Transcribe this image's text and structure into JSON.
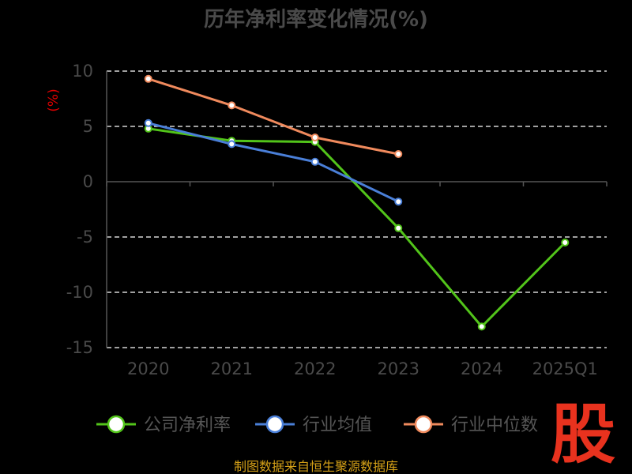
{
  "chart_data": {
    "type": "line",
    "title": "历年净利率变化情况(%)",
    "ylabel": "(%)",
    "xlabel": "",
    "categories": [
      "2020",
      "2021",
      "2022",
      "2023",
      "2024",
      "2025Q1"
    ],
    "ylim": [
      -15,
      10
    ],
    "yticks": [
      10,
      5,
      0,
      -5,
      -10,
      -15
    ],
    "grid": true,
    "legend_position": "bottom",
    "series": [
      {
        "name": "公司净利率",
        "color": "#52c41a",
        "values": [
          4.8,
          3.7,
          3.6,
          -4.2,
          -13.1,
          -5.5
        ]
      },
      {
        "name": "行业均值",
        "color": "#4a7fd8",
        "values": [
          5.3,
          3.4,
          1.8,
          -1.8,
          null,
          null
        ]
      },
      {
        "name": "行业中位数",
        "color": "#f08a5d",
        "values": [
          9.3,
          6.9,
          4.0,
          2.5,
          null,
          null
        ]
      }
    ]
  },
  "source_text": "制图数据来自恒生聚源数据库",
  "logo_text": "股"
}
